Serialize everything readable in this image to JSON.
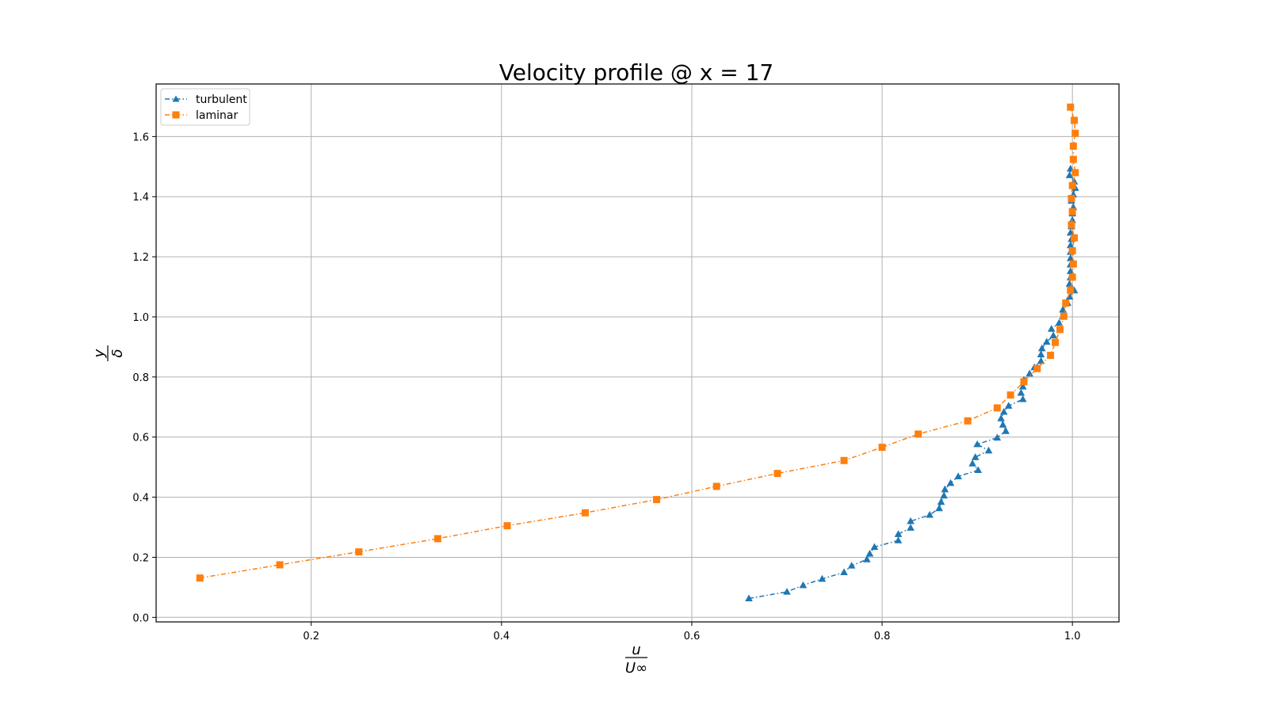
{
  "chart_data": {
    "type": "line",
    "title": "Velocity profile @ x = 17",
    "xlabel": {
      "numerator": "u",
      "denominator": "U∞"
    },
    "ylabel": {
      "numerator": "y",
      "denominator": "δ"
    },
    "xlim": [
      0.037,
      1.049
    ],
    "ylim": [
      -0.015,
      1.775
    ],
    "xticks": [
      0.2,
      0.4,
      0.6,
      0.8,
      1.0
    ],
    "xtick_labels": [
      "0.2",
      "0.4",
      "0.6",
      "0.8",
      "1.0"
    ],
    "yticks": [
      0.0,
      0.2,
      0.4,
      0.6,
      0.8,
      1.0,
      1.2,
      1.4,
      1.6
    ],
    "ytick_labels": [
      "0.0",
      "0.2",
      "0.4",
      "0.6",
      "0.8",
      "1.0",
      "1.2",
      "1.4",
      "1.6"
    ],
    "grid": true,
    "legend_position": "top-left",
    "series": [
      {
        "name": "turbulent",
        "color": "#1f77b4",
        "marker": "triangle",
        "linestyle": "dashdot",
        "points": [
          [
            0.66,
            0.063
          ],
          [
            0.7,
            0.085
          ],
          [
            0.717,
            0.107
          ],
          [
            0.737,
            0.128
          ],
          [
            0.76,
            0.15
          ],
          [
            0.768,
            0.172
          ],
          [
            0.784,
            0.193
          ],
          [
            0.787,
            0.212
          ],
          [
            0.792,
            0.234
          ],
          [
            0.817,
            0.256
          ],
          [
            0.817,
            0.277
          ],
          [
            0.83,
            0.298
          ],
          [
            0.83,
            0.32
          ],
          [
            0.85,
            0.341
          ],
          [
            0.86,
            0.363
          ],
          [
            0.862,
            0.384
          ],
          [
            0.865,
            0.405
          ],
          [
            0.866,
            0.426
          ],
          [
            0.872,
            0.447
          ],
          [
            0.88,
            0.469
          ],
          [
            0.901,
            0.49
          ],
          [
            0.895,
            0.512
          ],
          [
            0.898,
            0.533
          ],
          [
            0.912,
            0.555
          ],
          [
            0.9,
            0.576
          ],
          [
            0.921,
            0.598
          ],
          [
            0.93,
            0.62
          ],
          [
            0.927,
            0.641
          ],
          [
            0.925,
            0.662
          ],
          [
            0.928,
            0.684
          ],
          [
            0.933,
            0.704
          ],
          [
            0.948,
            0.726
          ],
          [
            0.946,
            0.747
          ],
          [
            0.948,
            0.768
          ],
          [
            0.949,
            0.79
          ],
          [
            0.955,
            0.811
          ],
          [
            0.96,
            0.832
          ],
          [
            0.967,
            0.853
          ],
          [
            0.967,
            0.875
          ],
          [
            0.968,
            0.895
          ],
          [
            0.973,
            0.917
          ],
          [
            0.98,
            0.938
          ],
          [
            0.978,
            0.96
          ],
          [
            0.986,
            0.98
          ],
          [
            0.99,
            1.002
          ],
          [
            0.99,
            1.024
          ],
          [
            0.995,
            1.046
          ],
          [
            0.997,
            1.067
          ],
          [
            1.002,
            1.088
          ],
          [
            0.997,
            1.11
          ],
          [
            0.998,
            1.131
          ],
          [
            0.998,
            1.152
          ],
          [
            0.998,
            1.174
          ],
          [
            0.998,
            1.195
          ],
          [
            0.998,
            1.216
          ],
          [
            0.998,
            1.238
          ],
          [
            0.999,
            1.259
          ],
          [
            0.998,
            1.28
          ],
          [
            0.999,
            1.301
          ],
          [
            1.0,
            1.322
          ],
          [
            1.0,
            1.344
          ],
          [
            1.001,
            1.365
          ],
          [
            0.999,
            1.386
          ],
          [
            1.001,
            1.407
          ],
          [
            1.003,
            1.429
          ],
          [
            1.002,
            1.45
          ],
          [
            0.997,
            1.471
          ],
          [
            0.998,
            1.493
          ]
        ]
      },
      {
        "name": "laminar",
        "color": "#ff7f0e",
        "marker": "square",
        "linestyle": "dashdot",
        "points": [
          [
            0.083,
            0.131
          ],
          [
            0.167,
            0.175
          ],
          [
            0.25,
            0.218
          ],
          [
            0.333,
            0.262
          ],
          [
            0.406,
            0.305
          ],
          [
            0.488,
            0.348
          ],
          [
            0.563,
            0.392
          ],
          [
            0.626,
            0.436
          ],
          [
            0.69,
            0.479
          ],
          [
            0.76,
            0.522
          ],
          [
            0.8,
            0.566
          ],
          [
            0.838,
            0.61
          ],
          [
            0.89,
            0.654
          ],
          [
            0.921,
            0.697
          ],
          [
            0.935,
            0.74
          ],
          [
            0.949,
            0.784
          ],
          [
            0.963,
            0.828
          ],
          [
            0.977,
            0.872
          ],
          [
            0.982,
            0.915
          ],
          [
            0.987,
            0.958
          ],
          [
            0.991,
            1.002
          ],
          [
            0.993,
            1.046
          ],
          [
            0.998,
            1.089
          ],
          [
            1.0,
            1.132
          ],
          [
            1.001,
            1.176
          ],
          [
            1.0,
            1.22
          ],
          [
            1.002,
            1.263
          ],
          [
            0.999,
            1.306
          ],
          [
            1.0,
            1.35
          ],
          [
            0.999,
            1.394
          ],
          [
            1.0,
            1.437
          ],
          [
            1.003,
            1.48
          ],
          [
            1.001,
            1.524
          ],
          [
            1.001,
            1.568
          ],
          [
            1.003,
            1.611
          ],
          [
            1.002,
            1.654
          ],
          [
            0.998,
            1.698
          ]
        ]
      }
    ]
  }
}
